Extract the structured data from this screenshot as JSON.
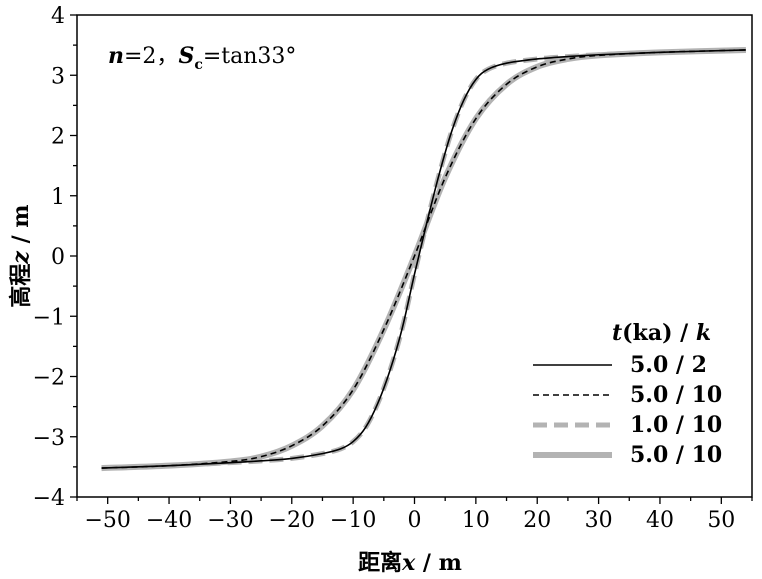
{
  "chart_data": {
    "type": "line",
    "annotation": "n=2，Sc=tan33°",
    "xlabel": "距离x / m",
    "ylabel": "高程z / m",
    "xlim": [
      -55,
      55
    ],
    "ylim": [
      -4,
      4
    ],
    "xticks": [
      -50,
      -40,
      -30,
      -20,
      -10,
      0,
      10,
      20,
      30,
      40,
      50
    ],
    "yticks": [
      -4,
      -3,
      -2,
      -1,
      0,
      1,
      2,
      3,
      4
    ],
    "grid": false,
    "legend_title": "t(ka) / k",
    "legend_placement": "bottom-right",
    "series": [
      {
        "name": "5.0 / 2",
        "color": "#000000",
        "style": "solid",
        "x": [
          -51,
          -40,
          -30,
          -25,
          -20,
          -15,
          -12,
          -10,
          -8,
          -6,
          -4,
          -2,
          0,
          2,
          4,
          6,
          8,
          10,
          12,
          15,
          20,
          25,
          30,
          40,
          54
        ],
        "y": [
          -3.52,
          -3.48,
          -3.43,
          -3.4,
          -3.36,
          -3.28,
          -3.2,
          -3.08,
          -2.85,
          -2.45,
          -1.9,
          -1.2,
          -0.3,
          0.55,
          1.35,
          2.05,
          2.58,
          2.93,
          3.1,
          3.2,
          3.27,
          3.31,
          3.34,
          3.38,
          3.42
        ]
      },
      {
        "name": "5.0 / 10",
        "color": "#000000",
        "style": "dashed",
        "x": [
          -51,
          -40,
          -30,
          -25,
          -20,
          -15,
          -10,
          -5,
          0,
          5,
          10,
          15,
          20,
          25,
          30,
          40,
          54
        ],
        "y": [
          -3.52,
          -3.48,
          -3.41,
          -3.33,
          -3.15,
          -2.82,
          -2.22,
          -1.22,
          0.0,
          1.3,
          2.28,
          2.85,
          3.14,
          3.27,
          3.33,
          3.38,
          3.42
        ]
      },
      {
        "name": "1.0 / 10",
        "color": "#b3b3b3",
        "style": "thick-dashed",
        "x": [
          -51,
          -40,
          -30,
          -25,
          -20,
          -15,
          -12,
          -10,
          -8,
          -6,
          -4,
          -2,
          0,
          2,
          4,
          6,
          8,
          10,
          12,
          15,
          20,
          25,
          30,
          40,
          54
        ],
        "y": [
          -3.52,
          -3.48,
          -3.43,
          -3.4,
          -3.36,
          -3.28,
          -3.2,
          -3.08,
          -2.85,
          -2.45,
          -1.9,
          -1.2,
          -0.3,
          0.55,
          1.35,
          2.05,
          2.58,
          2.93,
          3.1,
          3.2,
          3.27,
          3.31,
          3.34,
          3.38,
          3.42
        ]
      },
      {
        "name": "5.0 / 10",
        "color": "#b3b3b3",
        "style": "thick-solid",
        "x": [
          -51,
          -40,
          -30,
          -25,
          -20,
          -15,
          -10,
          -5,
          0,
          5,
          10,
          15,
          20,
          25,
          30,
          40,
          54
        ],
        "y": [
          -3.52,
          -3.48,
          -3.41,
          -3.33,
          -3.15,
          -2.82,
          -2.22,
          -1.22,
          0.0,
          1.3,
          2.28,
          2.85,
          3.14,
          3.27,
          3.33,
          3.38,
          3.42
        ]
      }
    ]
  }
}
